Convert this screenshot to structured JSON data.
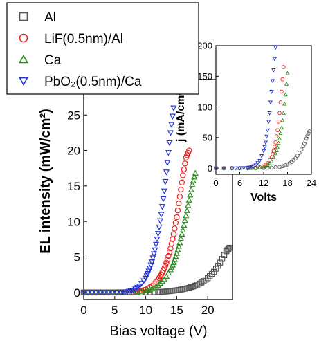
{
  "chart_data": [
    {
      "type": "scatter",
      "title": "",
      "xlabel": "Bias voltage (V)",
      "ylabel": "EL intensity (mW/cm²)",
      "xlim": [
        0,
        24
      ],
      "ylim": [
        -1,
        30
      ],
      "x_ticks": [
        "0",
        "5",
        "10",
        "15",
        "20"
      ],
      "y_ticks": [
        "0",
        "5",
        "10",
        "15",
        "20",
        "25"
      ],
      "legend_position": "top-left",
      "series": [
        {
          "name": "Al",
          "marker": "square",
          "color": "#555555",
          "x": [
            0,
            2,
            4,
            6,
            8,
            10,
            12,
            13,
            14,
            15,
            16,
            17,
            18,
            19,
            20,
            21,
            22,
            23,
            23.5
          ],
          "y": [
            0,
            0,
            0,
            0,
            0,
            0,
            0.05,
            0.1,
            0.2,
            0.3,
            0.45,
            0.65,
            0.95,
            1.4,
            2.0,
            2.9,
            4.2,
            5.8,
            6.3
          ]
        },
        {
          "name": "LiF(0.5nm)/Al",
          "marker": "circle",
          "color": "#e8201c",
          "x": [
            0,
            2,
            4,
            6,
            8,
            9,
            10,
            11,
            12,
            12.5,
            13,
            13.5,
            14,
            14.5,
            15,
            15.5,
            16,
            16.5,
            17
          ],
          "y": [
            0,
            0,
            0,
            0,
            0.05,
            0.15,
            0.4,
            0.9,
            1.8,
            2.5,
            3.4,
            4.6,
            6.2,
            8.2,
            10.6,
            13.5,
            16.5,
            19.0,
            20.0
          ]
        },
        {
          "name": "Ca",
          "marker": "triangle-up",
          "color": "#2d8a1e",
          "x": [
            0,
            2,
            4,
            6,
            8,
            10,
            11,
            12,
            13,
            14,
            14.5,
            15,
            15.5,
            16,
            16.5,
            17,
            17.5,
            18
          ],
          "y": [
            0,
            0,
            0,
            0,
            0.02,
            0.2,
            0.5,
            1.0,
            1.8,
            3.2,
            4.2,
            5.5,
            7.0,
            8.8,
            10.8,
            13.0,
            15.2,
            16.8
          ]
        },
        {
          "name": "PbO₂(0.5nm)/Ca",
          "marker": "triangle-down",
          "color": "#2233cc",
          "x": [
            0,
            2,
            4,
            6,
            7,
            8,
            9,
            10,
            10.5,
            11,
            11.5,
            12,
            12.5,
            13,
            13.5,
            14,
            14.5
          ],
          "y": [
            0,
            0,
            0,
            0.02,
            0.1,
            0.3,
            0.9,
            2.0,
            3.0,
            4.3,
            6.0,
            8.3,
            11.0,
            14.3,
            18.3,
            22.5,
            26.0
          ]
        }
      ]
    },
    {
      "type": "scatter",
      "title": "",
      "xlabel": "Volts",
      "ylabel": "j (mA/cm²)",
      "xlim": [
        0,
        24
      ],
      "ylim": [
        -10,
        200
      ],
      "x_ticks": [
        "0",
        "6",
        "12",
        "18",
        "24"
      ],
      "y_ticks": [
        "0",
        "50",
        "100",
        "150",
        "200"
      ],
      "series": [
        {
          "name": "Al",
          "marker": "circle",
          "color": "#555555",
          "x": [
            0,
            4,
            8,
            12,
            14,
            16,
            17,
            18,
            19,
            20,
            21,
            22,
            22.5,
            23,
            23.5
          ],
          "y": [
            0,
            0,
            0,
            0.3,
            0.8,
            2,
            3.5,
            6,
            10,
            16,
            25,
            36,
            44,
            53,
            60
          ]
        },
        {
          "name": "LiF(0.5nm)/Al",
          "marker": "circle",
          "color": "#e8201c",
          "x": [
            0,
            4,
            8,
            10,
            12,
            13,
            14,
            14.5,
            15,
            15.5,
            16,
            16.5,
            17
          ],
          "y": [
            0,
            0,
            0,
            0.5,
            3,
            8,
            18,
            28,
            42,
            62,
            90,
            125,
            165
          ]
        },
        {
          "name": "Ca",
          "marker": "triangle-up",
          "color": "#2d8a1e",
          "x": [
            0,
            4,
            8,
            10,
            12,
            13,
            14,
            15,
            15.5,
            16,
            16.5,
            17,
            17.5,
            18
          ],
          "y": [
            0,
            0,
            0,
            0.3,
            2,
            5,
            11,
            24,
            34,
            48,
            66,
            90,
            120,
            155
          ]
        },
        {
          "name": "PbO₂(0.5nm)/Ca",
          "marker": "triangle-down",
          "color": "#2233cc",
          "x": [
            0,
            4,
            6,
            8,
            9,
            10,
            11,
            12,
            12.5,
            13,
            13.5,
            14,
            14.5,
            15
          ],
          "y": [
            0,
            0,
            0,
            1,
            2,
            5,
            12,
            28,
            42,
            62,
            90,
            125,
            160,
            197
          ]
        }
      ]
    }
  ]
}
